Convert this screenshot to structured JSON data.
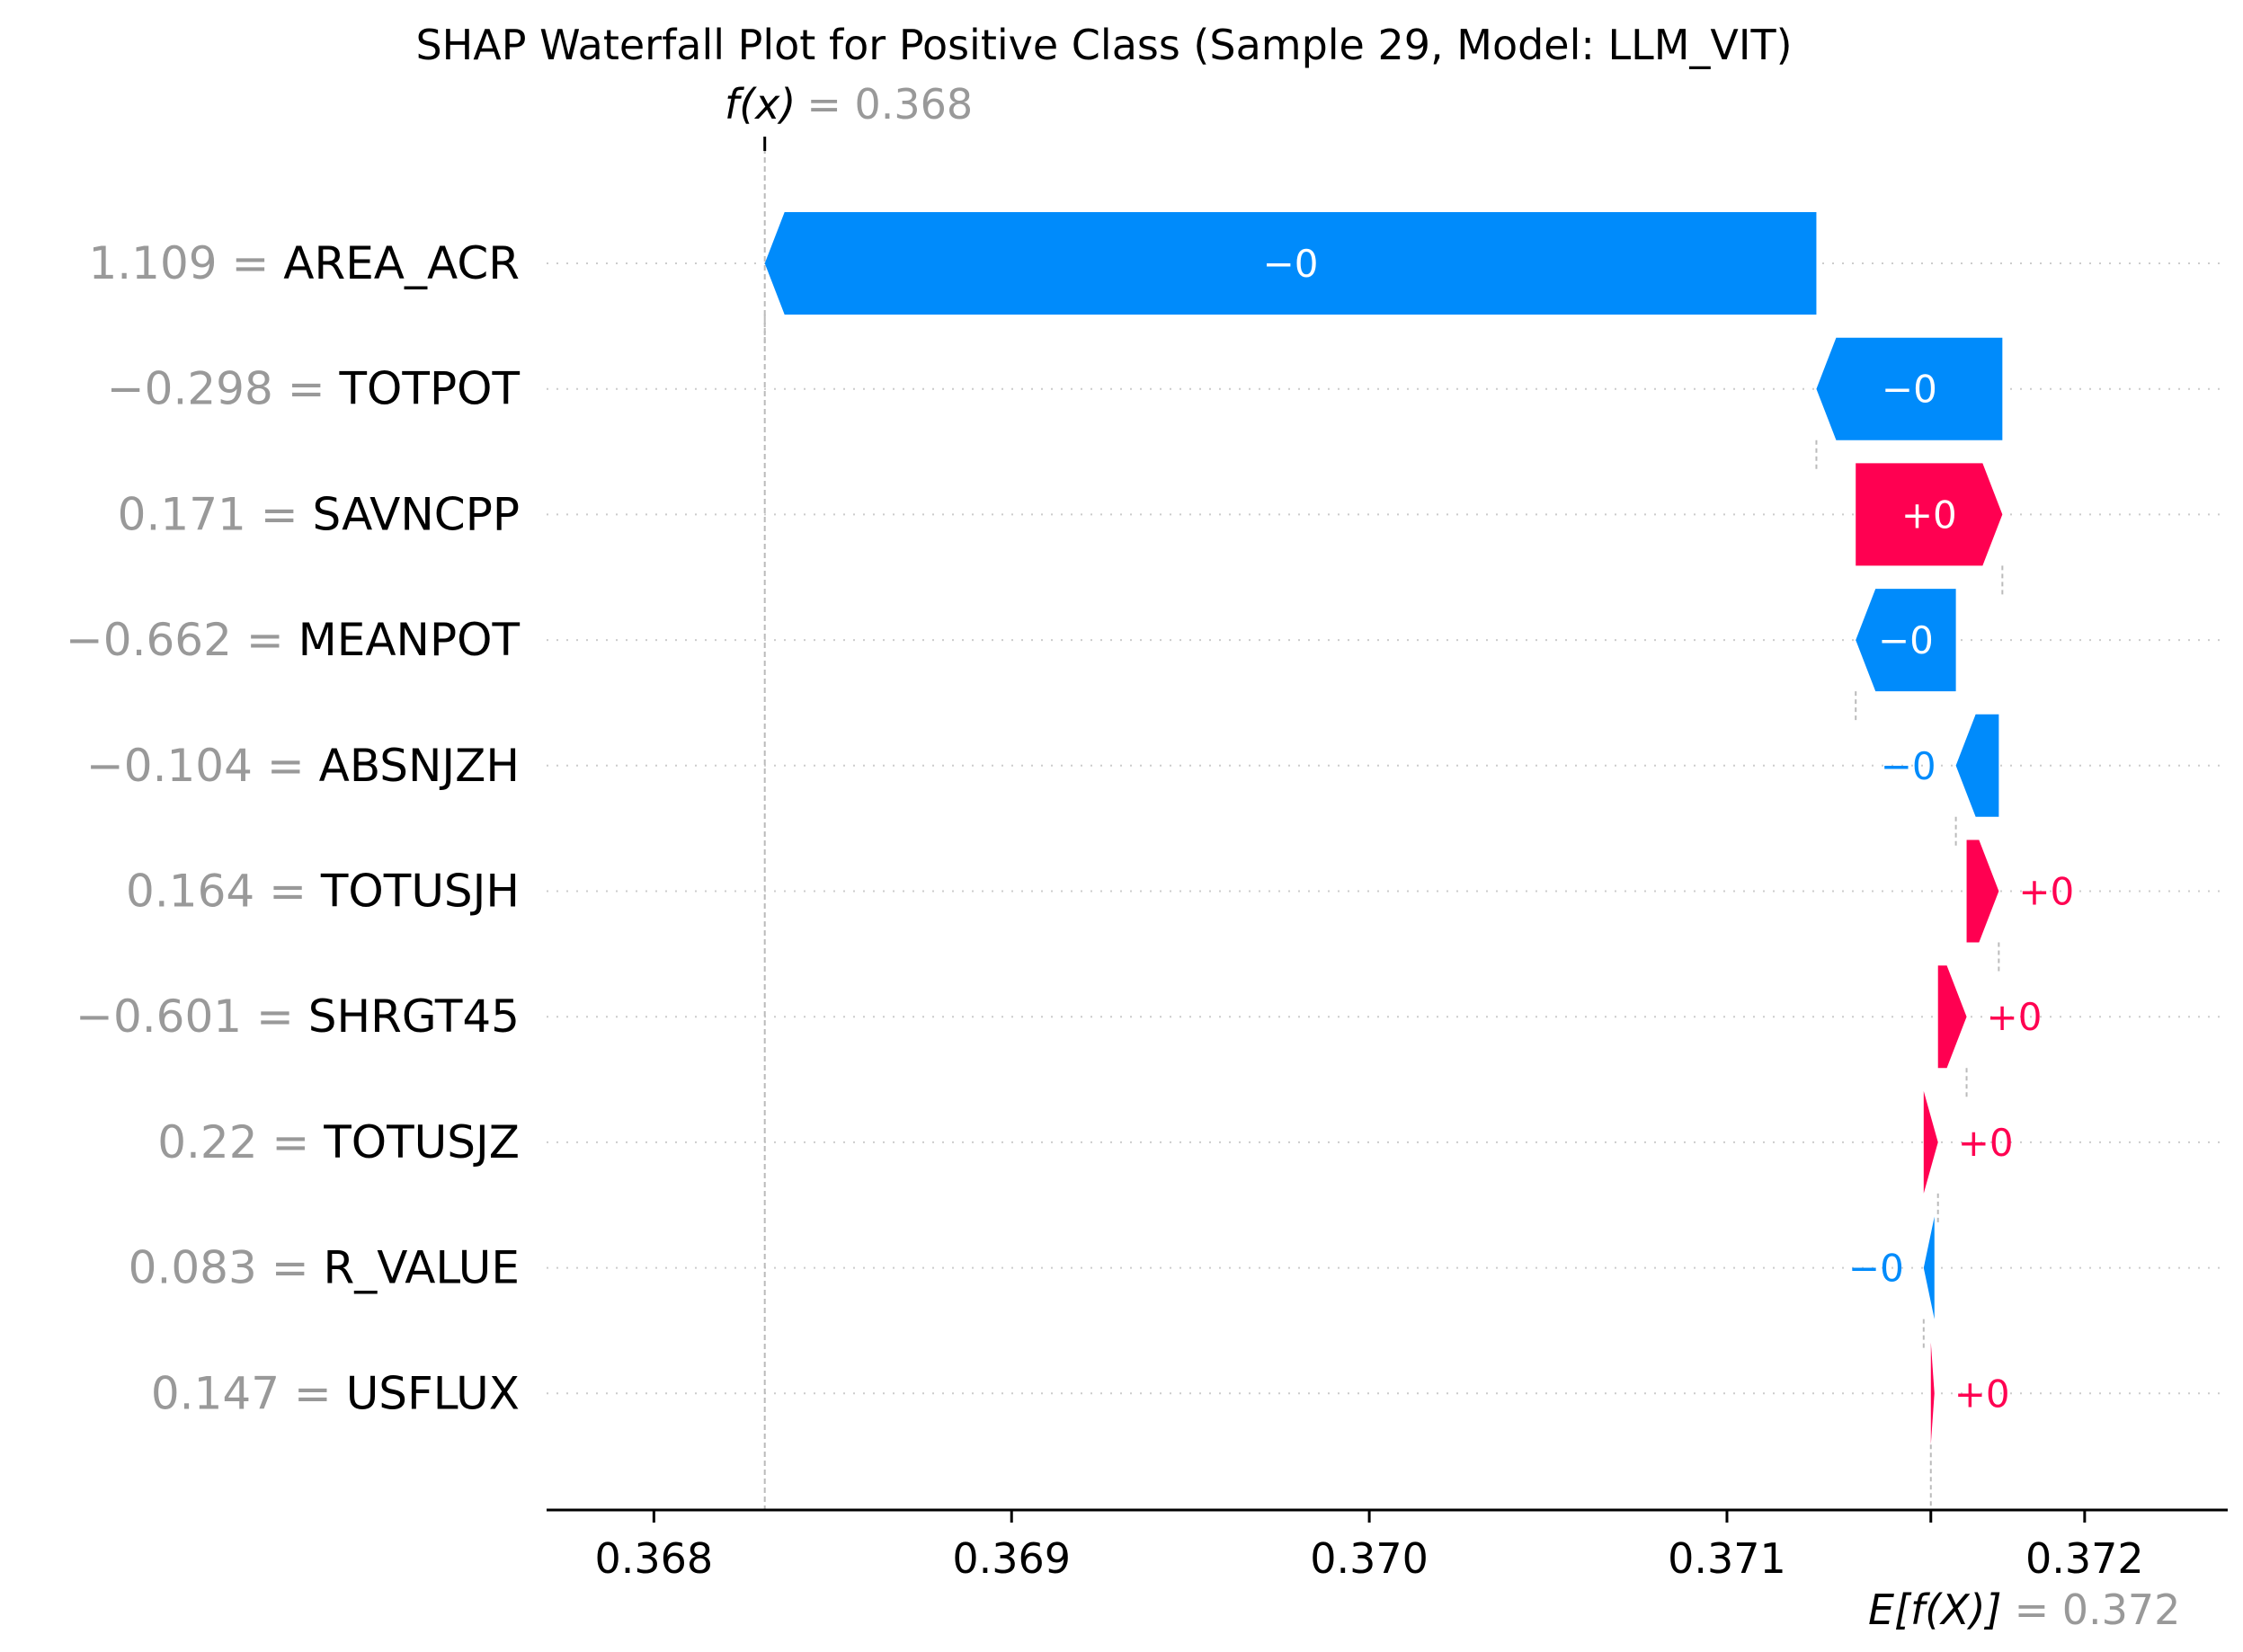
{
  "chart_data": {
    "type": "waterfall",
    "title": "SHAP Waterfall Plot for Positive Class (Sample 29, Model: LLM_VIT)",
    "fx_label": "f(x)",
    "fx_value_text": "= 0.368",
    "fx_value": 0.36831,
    "ef_label": "E[f(X)]",
    "ef_value_text": "= 0.372",
    "ef_value": 0.37157,
    "xlim": [
      0.3677,
      0.3724
    ],
    "x_ticks": [
      0.368,
      0.369,
      0.37,
      0.371,
      0.372
    ],
    "x_tick_labels": [
      "0.368",
      "0.369",
      "0.370",
      "0.371",
      "0.372"
    ],
    "features": [
      {
        "value_text": "1.109",
        "name": "AREA_ACR",
        "start": 0.37125,
        "end": 0.36831,
        "label": "−0",
        "sign": "neg"
      },
      {
        "value_text": "−0.298",
        "name": "TOTPOT",
        "start": 0.37177,
        "end": 0.37125,
        "label": "−0",
        "sign": "neg"
      },
      {
        "value_text": "0.171",
        "name": "SAVNCPP",
        "start": 0.37136,
        "end": 0.37177,
        "label": "+0",
        "sign": "pos"
      },
      {
        "value_text": "−0.662",
        "name": "MEANPOT",
        "start": 0.37164,
        "end": 0.37136,
        "label": "−0",
        "sign": "neg"
      },
      {
        "value_text": "−0.104",
        "name": "ABSNJZH",
        "start": 0.37176,
        "end": 0.37164,
        "label": "−0",
        "sign": "neg"
      },
      {
        "value_text": "0.164",
        "name": "TOTUSJH",
        "start": 0.37167,
        "end": 0.37176,
        "label": "+0",
        "sign": "pos"
      },
      {
        "value_text": "−0.601",
        "name": "SHRGT45",
        "start": 0.37159,
        "end": 0.37167,
        "label": "+0",
        "sign": "pos"
      },
      {
        "value_text": "0.22",
        "name": "TOTUSJZ",
        "start": 0.37155,
        "end": 0.37159,
        "label": "+0",
        "sign": "pos"
      },
      {
        "value_text": "0.083",
        "name": "R_VALUE",
        "start": 0.37158,
        "end": 0.37155,
        "label": "−0",
        "sign": "neg"
      },
      {
        "value_text": "0.147",
        "name": "USFLUX",
        "start": 0.37157,
        "end": 0.37158,
        "label": "+0",
        "sign": "pos"
      }
    ],
    "colors": {
      "positive": "#ff0051",
      "negative": "#008bfb",
      "text_muted": "#999999",
      "axis": "#000000",
      "grid": "#cccccc"
    }
  }
}
